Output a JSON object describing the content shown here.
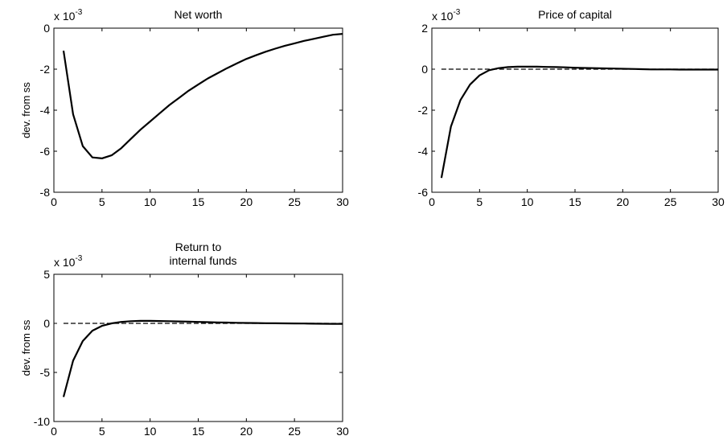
{
  "chart_data": [
    {
      "type": "line",
      "title": [
        "Net worth"
      ],
      "ylabel": "dev. from ss",
      "exponent_base": "x 10",
      "exponent_power": "-3",
      "xlim": [
        0,
        30
      ],
      "ylim": [
        -8,
        0
      ],
      "xticks": [
        0,
        5,
        10,
        15,
        20,
        25,
        30
      ],
      "yticks": [
        0,
        -2,
        -4,
        -6,
        -8
      ],
      "zero_line": false,
      "series": [
        {
          "x": [
            1,
            2,
            3,
            4,
            5,
            6,
            7,
            8,
            9,
            10,
            11,
            12,
            13,
            14,
            15,
            16,
            17,
            18,
            19,
            20,
            21,
            22,
            23,
            24,
            25,
            26,
            27,
            28,
            29,
            30
          ],
          "y": [
            -1.1,
            -4.2,
            -5.75,
            -6.3,
            -6.35,
            -6.2,
            -5.85,
            -5.4,
            -4.95,
            -4.55,
            -4.15,
            -3.75,
            -3.4,
            -3.05,
            -2.75,
            -2.45,
            -2.2,
            -1.95,
            -1.72,
            -1.5,
            -1.32,
            -1.15,
            -1.0,
            -0.86,
            -0.74,
            -0.62,
            -0.52,
            -0.42,
            -0.32,
            -0.28
          ]
        }
      ]
    },
    {
      "type": "line",
      "title": [
        "Price of capital"
      ],
      "ylabel": "",
      "exponent_base": "x 10",
      "exponent_power": "-3",
      "xlim": [
        0,
        30
      ],
      "ylim": [
        -6,
        2
      ],
      "xticks": [
        0,
        5,
        10,
        15,
        20,
        25,
        30
      ],
      "yticks": [
        2,
        0,
        -2,
        -4,
        -6
      ],
      "zero_line": true,
      "series": [
        {
          "x": [
            1,
            2,
            3,
            4,
            5,
            6,
            7,
            8,
            9,
            10,
            11,
            12,
            13,
            14,
            15,
            16,
            17,
            18,
            19,
            20,
            21,
            22,
            23,
            24,
            25,
            26,
            27,
            28,
            29,
            30
          ],
          "y": [
            -5.3,
            -2.8,
            -1.5,
            -0.75,
            -0.3,
            -0.05,
            0.05,
            0.1,
            0.12,
            0.12,
            0.12,
            0.11,
            0.1,
            0.09,
            0.07,
            0.06,
            0.05,
            0.04,
            0.03,
            0.02,
            0.01,
            0.0,
            -0.01,
            -0.01,
            -0.01,
            -0.02,
            -0.02,
            -0.02,
            -0.02,
            -0.02
          ]
        }
      ]
    },
    {
      "type": "line",
      "title": [
        "Return to",
        "internal funds"
      ],
      "ylabel": "dev. from ss",
      "exponent_base": "x 10",
      "exponent_power": "-3",
      "xlim": [
        0,
        30
      ],
      "ylim": [
        -10,
        5
      ],
      "xticks": [
        0,
        5,
        10,
        15,
        20,
        25,
        30
      ],
      "yticks": [
        5,
        0,
        -5,
        -10
      ],
      "zero_line": true,
      "series": [
        {
          "x": [
            1,
            2,
            3,
            4,
            5,
            6,
            7,
            8,
            9,
            10,
            11,
            12,
            13,
            14,
            15,
            16,
            17,
            18,
            19,
            20,
            21,
            22,
            23,
            24,
            25,
            26,
            27,
            28,
            29,
            30
          ],
          "y": [
            -7.5,
            -3.8,
            -1.8,
            -0.75,
            -0.25,
            0.0,
            0.15,
            0.22,
            0.25,
            0.25,
            0.24,
            0.22,
            0.2,
            0.18,
            0.15,
            0.12,
            0.1,
            0.08,
            0.06,
            0.04,
            0.03,
            0.02,
            0.01,
            0.0,
            -0.01,
            -0.02,
            -0.03,
            -0.04,
            -0.05,
            -0.05
          ]
        }
      ]
    }
  ]
}
